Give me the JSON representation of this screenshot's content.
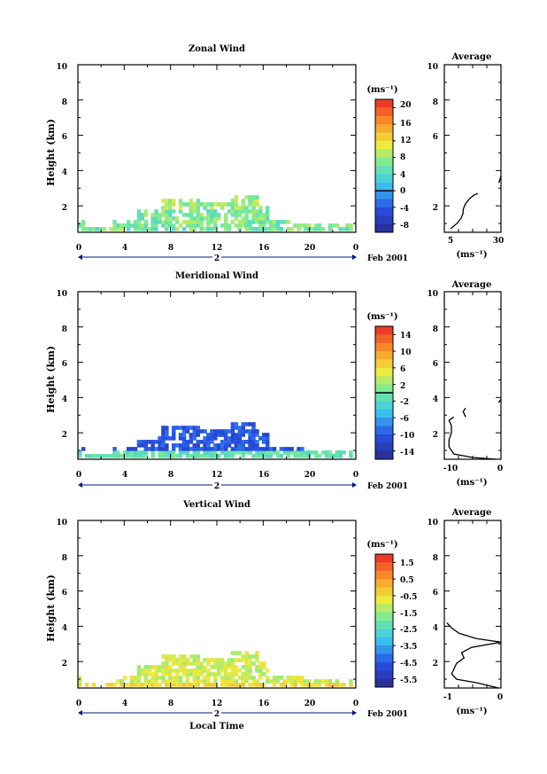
{
  "chart_data": [
    {
      "type": "heatmap",
      "title": "Zonal Wind",
      "ylabel": "Height (km)",
      "xlabel": "",
      "xlim": [
        0,
        24
      ],
      "ylim": [
        0.5,
        10
      ],
      "x_ticks": [
        "0",
        "4",
        "8",
        "12",
        "16",
        "20",
        "0"
      ],
      "y_ticks": [
        "2",
        "4",
        "6",
        "8",
        "10"
      ],
      "date_marker": "2",
      "date_label": "Feb 2001",
      "colorbar": {
        "unit": "(ms⁻¹)",
        "ticks": [
          "20",
          "16",
          "12",
          "8",
          "4",
          "0",
          "-4",
          "-8"
        ],
        "range": [
          -10,
          22
        ],
        "zero_line": 0
      },
      "average": {
        "title": "Average",
        "xlabel": "(ms⁻¹)",
        "x_ticks": [
          "5",
          "30"
        ],
        "xlim": [
          3,
          30
        ],
        "y_ticks": [
          "2",
          "6",
          "8",
          "10"
        ],
        "profile": [
          [
            0.7,
            6
          ],
          [
            1.0,
            9
          ],
          [
            1.3,
            11
          ],
          [
            1.6,
            12
          ],
          [
            1.8,
            12
          ],
          [
            2.1,
            13
          ],
          [
            2.4,
            15
          ],
          [
            2.6,
            17
          ],
          [
            2.7,
            19
          ]
        ],
        "profile2": [
          [
            3.3,
            29
          ],
          [
            3.7,
            30
          ]
        ]
      }
    },
    {
      "type": "heatmap",
      "title": "Meridional Wind",
      "ylabel": "Height (km)",
      "xlabel": "",
      "xlim": [
        0,
        24
      ],
      "ylim": [
        0.5,
        10
      ],
      "x_ticks": [
        "0",
        "4",
        "8",
        "12",
        "16",
        "20",
        "0"
      ],
      "y_ticks": [
        "2",
        "4",
        "6",
        "8",
        "10"
      ],
      "date_marker": "2",
      "date_label": "Feb 2001",
      "colorbar": {
        "unit": "(ms⁻¹)",
        "ticks": [
          "14",
          "10",
          "6",
          "2",
          "-2",
          "-6",
          "-10",
          "-14"
        ],
        "range": [
          -16,
          16
        ],
        "zero_line": 0
      },
      "average": {
        "title": "Average",
        "xlabel": "(ms⁻¹)",
        "x_ticks": [
          "-10",
          "0"
        ],
        "xlim": [
          -12,
          0
        ],
        "y_ticks": [
          "2",
          "4",
          "6",
          "8",
          "10"
        ],
        "profile": [
          [
            0.5,
            -1
          ],
          [
            0.6,
            -6
          ],
          [
            0.8,
            -10
          ],
          [
            1.2,
            -11
          ],
          [
            1.6,
            -11
          ],
          [
            2.0,
            -10.5
          ],
          [
            2.4,
            -10.5
          ],
          [
            2.7,
            -11
          ],
          [
            2.9,
            -10
          ]
        ],
        "profile2": [
          [
            2.9,
            -7.5
          ],
          [
            3.2,
            -8
          ],
          [
            3.4,
            -7.5
          ]
        ],
        "profile3": [
          [
            3.7,
            -0.5
          ],
          [
            3.9,
            0
          ]
        ]
      }
    },
    {
      "type": "heatmap",
      "title": "Vertical Wind",
      "ylabel": "Height (km)",
      "xlabel": "Local Time",
      "xlim": [
        0,
        24
      ],
      "ylim": [
        0.5,
        10
      ],
      "x_ticks": [
        "0",
        "4",
        "8",
        "12",
        "16",
        "20",
        "0"
      ],
      "y_ticks": [
        "2",
        "4",
        "6",
        "8",
        "10"
      ],
      "date_marker": "2",
      "date_label": "Feb 2001",
      "colorbar": {
        "unit": "(ms⁻¹)",
        "ticks": [
          "1.5",
          "0.5",
          "-0.5",
          "-1.5",
          "-2.5",
          "-3.5",
          "-4.5",
          "-5.5"
        ],
        "range": [
          -6,
          2
        ]
      },
      "average": {
        "title": "Average",
        "xlabel": "(ms⁻¹)",
        "x_ticks": [
          "-1",
          "0"
        ],
        "xlim": [
          -1.15,
          0
        ],
        "y_ticks": [
          "2",
          "4",
          "6",
          "8",
          "10"
        ],
        "profile": [
          [
            0.5,
            -0.05
          ],
          [
            0.8,
            -0.5
          ],
          [
            1.0,
            -0.9
          ],
          [
            1.3,
            -1.0
          ],
          [
            1.6,
            -0.95
          ],
          [
            1.9,
            -0.9
          ],
          [
            2.2,
            -0.75
          ],
          [
            2.5,
            -0.8
          ],
          [
            2.8,
            -0.6
          ],
          [
            3.1,
            0
          ],
          [
            3.3,
            -0.5
          ],
          [
            3.6,
            -0.85
          ],
          [
            3.9,
            -1.0
          ],
          [
            4.2,
            -1.1
          ]
        ]
      }
    }
  ]
}
